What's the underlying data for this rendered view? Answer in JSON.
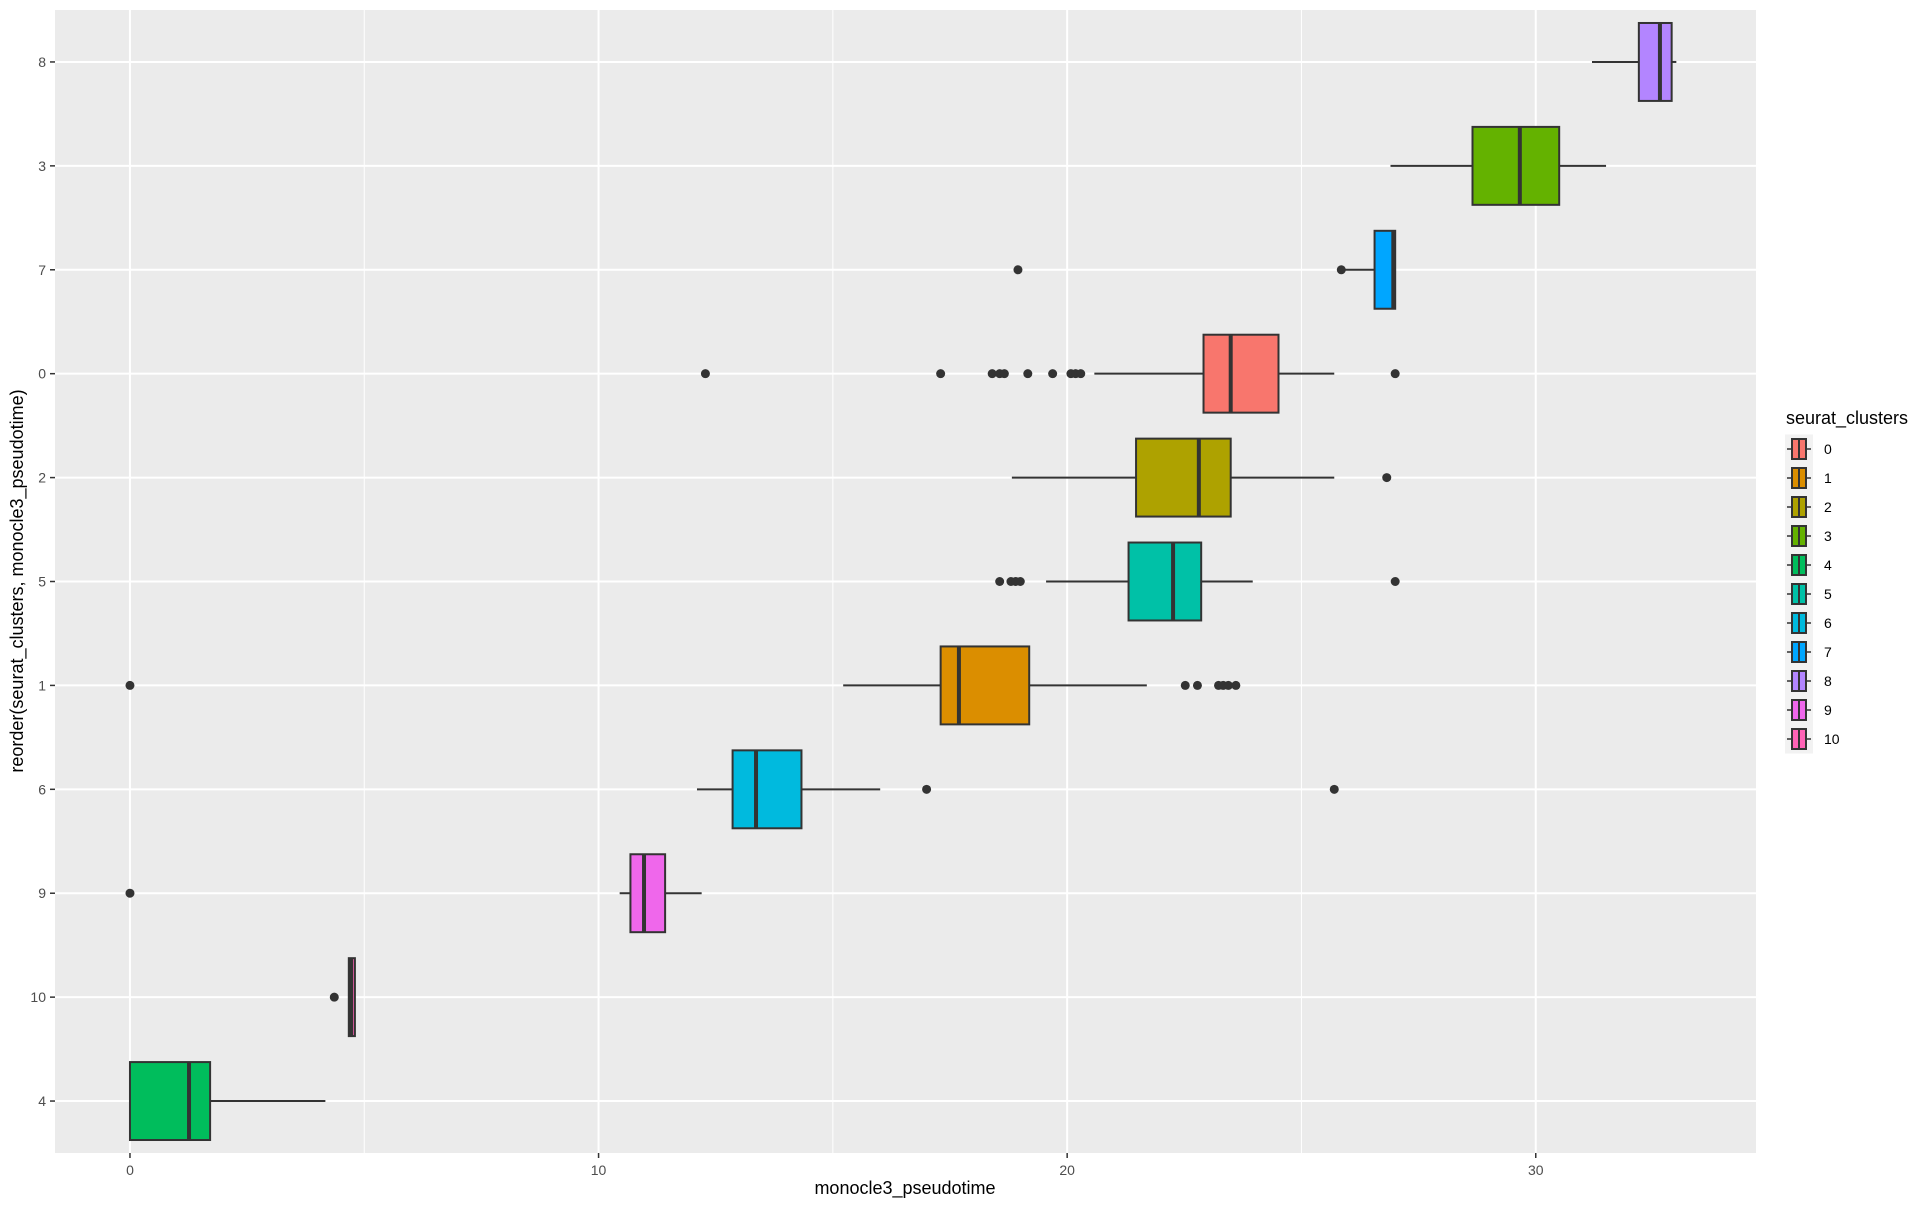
{
  "chart_data": {
    "type": "boxplot",
    "orientation": "horizontal",
    "xlabel": "monocle3_pseudotime",
    "ylabel": "reorder(seurat_clusters, monocle3_pseudotime)",
    "xlim": [
      -1.6,
      34.7
    ],
    "x_ticks": [
      0,
      10,
      20,
      30
    ],
    "grid": true,
    "legend": {
      "title": "seurat_clusters",
      "position": "right",
      "entries": [
        "0",
        "1",
        "2",
        "3",
        "4",
        "5",
        "6",
        "7",
        "8",
        "9",
        "10"
      ]
    },
    "colors": {
      "0": "#F8766D",
      "1": "#DB8E00",
      "2": "#AEA200",
      "3": "#64B200",
      "4": "#00BD5C",
      "5": "#00C1A7",
      "6": "#00BADE",
      "7": "#00A6FF",
      "8": "#B385FF",
      "9": "#EF67EB",
      "10": "#FF63B6"
    },
    "categories": [
      "4",
      "10",
      "9",
      "6",
      "1",
      "5",
      "2",
      "0",
      "7",
      "3",
      "8"
    ],
    "boxes": [
      {
        "cluster": "4",
        "whisker_low": 0,
        "q1": 0,
        "median": 1.26,
        "q3": 1.71,
        "whisker_high": 4.17,
        "outliers": []
      },
      {
        "cluster": "10",
        "whisker_low": 4.67,
        "q1": 4.67,
        "median": 4.72,
        "q3": 4.8,
        "whisker_high": 4.8,
        "outliers": [
          4.36
        ]
      },
      {
        "cluster": "9",
        "whisker_low": 10.45,
        "q1": 10.68,
        "median": 10.97,
        "q3": 11.42,
        "whisker_high": 12.2,
        "outliers": [
          0
        ]
      },
      {
        "cluster": "6",
        "whisker_low": 12.1,
        "q1": 12.86,
        "median": 13.36,
        "q3": 14.33,
        "whisker_high": 16.01,
        "outliers": [
          17.0,
          25.7
        ]
      },
      {
        "cluster": "1",
        "whisker_low": 15.22,
        "q1": 17.3,
        "median": 17.69,
        "q3": 19.19,
        "whisker_high": 21.7,
        "outliers": [
          0,
          22.52,
          22.78,
          23.23,
          23.33,
          23.44,
          23.6
        ]
      },
      {
        "cluster": "5",
        "whisker_low": 19.55,
        "q1": 21.31,
        "median": 22.26,
        "q3": 22.86,
        "whisker_high": 23.96,
        "outliers": [
          18.56,
          18.8,
          18.9,
          19.0,
          27.0
        ]
      },
      {
        "cluster": "2",
        "whisker_low": 18.82,
        "q1": 21.47,
        "median": 22.81,
        "q3": 23.49,
        "whisker_high": 25.7,
        "outliers": [
          26.82
        ]
      },
      {
        "cluster": "0",
        "whisker_low": 20.58,
        "q1": 22.91,
        "median": 23.49,
        "q3": 24.51,
        "whisker_high": 25.7,
        "outliers": [
          12.28,
          17.3,
          18.4,
          18.56,
          18.66,
          19.16,
          19.69,
          20.08,
          20.18,
          20.29,
          27.0
        ]
      },
      {
        "cluster": "7",
        "whisker_low": 25.85,
        "q1": 26.56,
        "median": 26.96,
        "q3": 27.0,
        "whisker_high": 27.0,
        "outliers": [
          18.95,
          25.85
        ]
      },
      {
        "cluster": "3",
        "whisker_low": 26.9,
        "q1": 28.65,
        "median": 29.66,
        "q3": 30.5,
        "whisker_high": 31.5,
        "outliers": []
      },
      {
        "cluster": "8",
        "whisker_low": 31.2,
        "q1": 32.2,
        "median": 32.65,
        "q3": 32.9,
        "whisker_high": 33.0,
        "outliers": []
      }
    ]
  }
}
